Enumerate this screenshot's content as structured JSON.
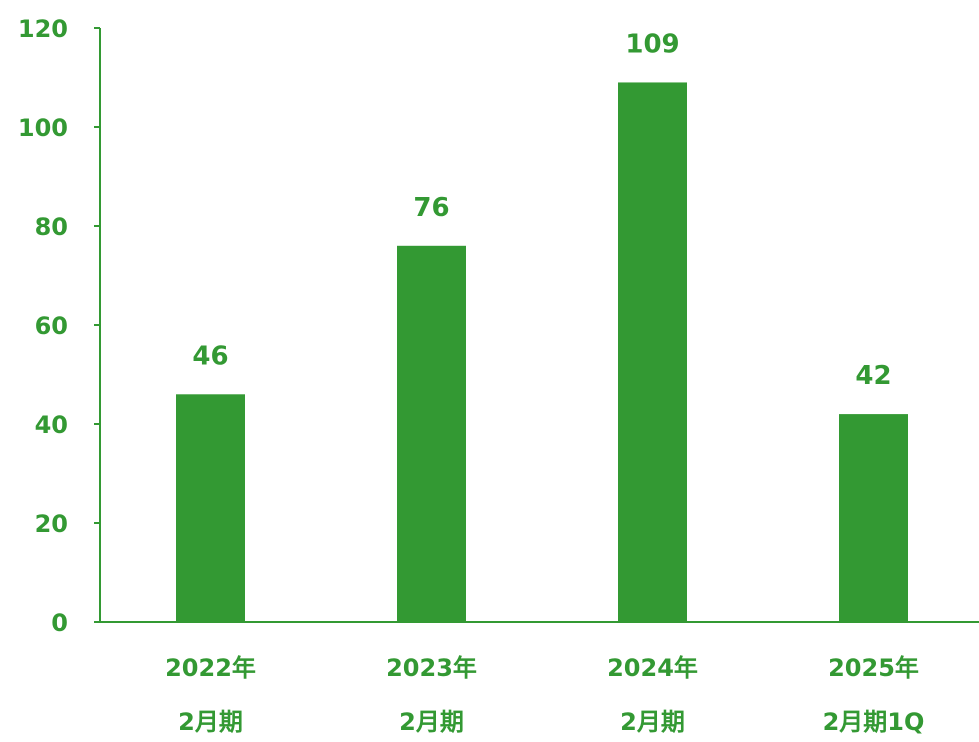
{
  "chart_data": {
    "type": "bar",
    "categories": [
      {
        "line1": "2022年",
        "line2": "2月期"
      },
      {
        "line1": "2023年",
        "line2": "2月期"
      },
      {
        "line1": "2024年",
        "line2": "2月期"
      },
      {
        "line1": "2025年",
        "line2": "2月期1Q"
      }
    ],
    "values": [
      46,
      76,
      109,
      42
    ],
    "data_labels": [
      "46",
      "76",
      "109",
      "42"
    ],
    "ylim": [
      0,
      120
    ],
    "yticks": [
      0,
      20,
      40,
      60,
      80,
      100,
      120
    ],
    "ytick_labels": [
      "0",
      "20",
      "40",
      "60",
      "80",
      "100",
      "120"
    ],
    "title": "",
    "xlabel": "",
    "ylabel": "",
    "grid": false,
    "legend": "none",
    "colors": {
      "bar": "#339933",
      "text": "#339933",
      "axis": "#339933"
    }
  }
}
